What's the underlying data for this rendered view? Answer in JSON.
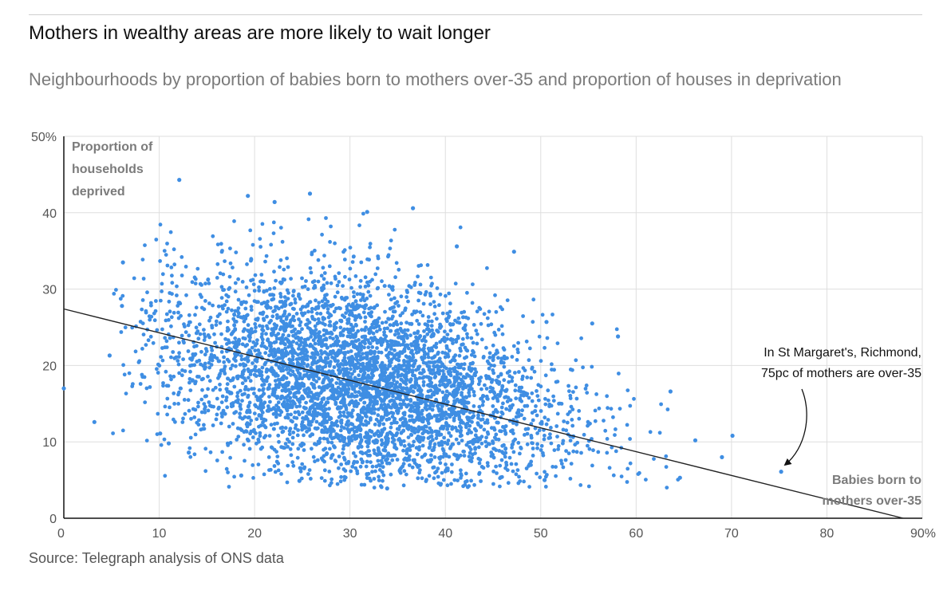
{
  "header": {
    "title": "Mothers in wealthy areas are more likely to wait longer",
    "subtitle": "Neighbourhoods by proportion of babies born to mothers over-35 and proportion of houses in deprivation"
  },
  "footer": {
    "source": "Source: Telegraph analysis of ONS data"
  },
  "chart_data": {
    "type": "scatter",
    "title": "Mothers in wealthy areas are more likely to wait longer",
    "subtitle": "Neighbourhoods by proportion of babies born to mothers over-35 and proportion of houses in deprivation",
    "xlabel_lines": [
      "Babies born to",
      "mothers over-35"
    ],
    "ylabel_lines": [
      "Proportion of",
      "households",
      "deprived"
    ],
    "xlim": [
      0,
      90
    ],
    "ylim": [
      0,
      50
    ],
    "x_ticks": [
      0,
      10,
      20,
      30,
      40,
      50,
      60,
      70,
      80,
      90
    ],
    "x_tick_labels": [
      "0",
      "10",
      "20",
      "30",
      "40",
      "50",
      "60",
      "70",
      "80",
      "90%"
    ],
    "y_ticks": [
      0,
      10,
      20,
      30,
      40,
      50
    ],
    "y_tick_labels": [
      "0",
      "10",
      "20",
      "30",
      "40",
      "50%"
    ],
    "grid": true,
    "point_color": "#3f8ee3",
    "trend_line": {
      "x": [
        0,
        88
      ],
      "y": [
        27.4,
        0
      ],
      "color": "#222222"
    },
    "annotation": {
      "lines": [
        "In St Margaret's, Richmond,",
        "75pc of mothers are over-35"
      ],
      "target": {
        "x": 75.2,
        "y": 6.1
      }
    },
    "highlight_points": [
      {
        "x": 0,
        "y": 17
      },
      {
        "x": 3.2,
        "y": 12.6
      },
      {
        "x": 12.1,
        "y": 44.3
      },
      {
        "x": 19.3,
        "y": 42.2
      },
      {
        "x": 25.8,
        "y": 42.5
      },
      {
        "x": 22.1,
        "y": 41.4
      },
      {
        "x": 31.8,
        "y": 40.1
      },
      {
        "x": 36.6,
        "y": 40.6
      },
      {
        "x": 41.2,
        "y": 35.6
      },
      {
        "x": 47.2,
        "y": 34.9
      },
      {
        "x": 50.6,
        "y": 25.7
      },
      {
        "x": 55.4,
        "y": 25.5
      },
      {
        "x": 58.1,
        "y": 23.8
      },
      {
        "x": 63.6,
        "y": 16.6
      },
      {
        "x": 66.2,
        "y": 10.2
      },
      {
        "x": 69.0,
        "y": 8.0
      },
      {
        "x": 70.1,
        "y": 10.8
      },
      {
        "x": 75.2,
        "y": 6.1
      },
      {
        "x": 18.6,
        "y": 5.6
      },
      {
        "x": 24.7,
        "y": 4.9
      },
      {
        "x": 33.9,
        "y": 3.9
      },
      {
        "x": 50.4,
        "y": 5.0
      },
      {
        "x": 64.6,
        "y": 5.3
      },
      {
        "x": 4.8,
        "y": 21.3
      },
      {
        "x": 6.1,
        "y": 27.8
      },
      {
        "x": 6.2,
        "y": 33.5
      },
      {
        "x": 10.1,
        "y": 11.1
      },
      {
        "x": 11.0,
        "y": 9.8
      },
      {
        "x": 13.1,
        "y": 8.6
      }
    ],
    "cluster_estimate": {
      "point_count": 4400,
      "seed": 20240611,
      "x_mean": 30,
      "x_sd": 10,
      "y_mean": 18,
      "y_slope_per_x": -0.24,
      "y_sd": 6.5
    }
  }
}
